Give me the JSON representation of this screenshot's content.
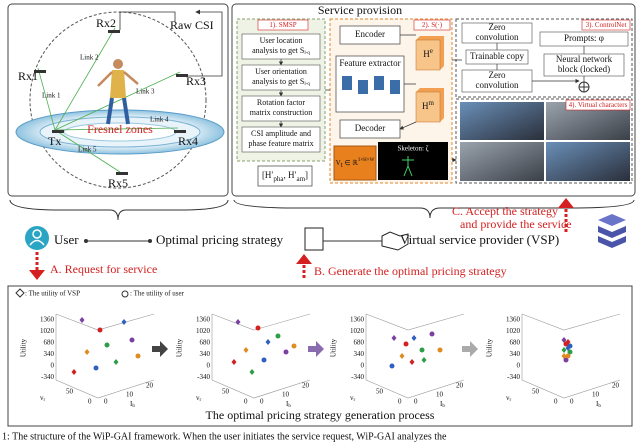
{
  "sensing": {
    "rx": [
      "Rx1",
      "Rx2",
      "Rx3",
      "Rx4",
      "Rx5"
    ],
    "tx": "Tx",
    "raw_csi": "Raw CSI",
    "links": [
      "Link 1",
      "Link 2",
      "Link 3",
      "Link 4",
      "Link 5"
    ],
    "fresnel": "Fresnel zones"
  },
  "service": {
    "title": "Service provision",
    "smsp": {
      "label": "1). SMSP",
      "steps": [
        {
          "lines": [
            "User location",
            "analysis to get"
          ],
          "symbol": "S",
          "sub": "l-q"
        },
        {
          "lines": [
            "User orientation",
            "analysis to get"
          ],
          "symbol": "S",
          "sub": "l-q"
        },
        {
          "lines": [
            "Rotation factor",
            "matrix construction"
          ]
        },
        {
          "lines": [
            "CSI amplitude and",
            "phase feature matrix"
          ]
        }
      ],
      "output": {
        "a": "[H′",
        "a_sub": "pha",
        "b": ", H′",
        "b_sub": "am",
        "c": "]"
      }
    },
    "s": {
      "label": "2). S(·)",
      "encoder": "Encoder",
      "extractor": "Feature extractor",
      "he": "H",
      "he_sup": "e",
      "hm": "H",
      "hm_sup": "m",
      "decoder": "Decoder",
      "vt": "V",
      "vt_sub": "t",
      "vt_set": " ∈ ℝ",
      "vt_dim": "3×H×W",
      "skeleton": "Skeleton: ζ"
    },
    "controlnet": {
      "label": "3). ControlNet",
      "zero1": [
        "Zero",
        "convolution"
      ],
      "trainable": "Trainable copy",
      "zero2": [
        "Zero",
        "convolution"
      ],
      "prompts": "Prompts: φ",
      "nn": [
        "Neural network",
        "block (locked)"
      ]
    },
    "characters": "4). Virtual characters"
  },
  "flow": {
    "user": "User",
    "strategy": "Optimal pricing strategy",
    "vsp": "Virtual service provider (VSP)",
    "a": "A. Request for service",
    "b": "B. Generate the optimal pricing strategy",
    "c": [
      "C. Accept the strategy",
      "and provide the service"
    ]
  },
  "process": {
    "legend_vsp": ": The utility of VSP",
    "legend_user": ": The utility of user",
    "y_label": "Utility",
    "yticks": [
      "1360",
      "1020",
      "680",
      "340",
      "0",
      "-340"
    ],
    "x_label": "v",
    "x_sub": "r",
    "xticks": [
      "50",
      "0"
    ],
    "z_label": "I",
    "z_sub": "b",
    "zticks": [
      "0",
      "10",
      "20"
    ],
    "title": "The optimal pricing strategy generation process"
  },
  "caption": "1: The structure of the WiP-GAI framework. When the user initiates the service request, WiP-GAI analyzes the"
}
